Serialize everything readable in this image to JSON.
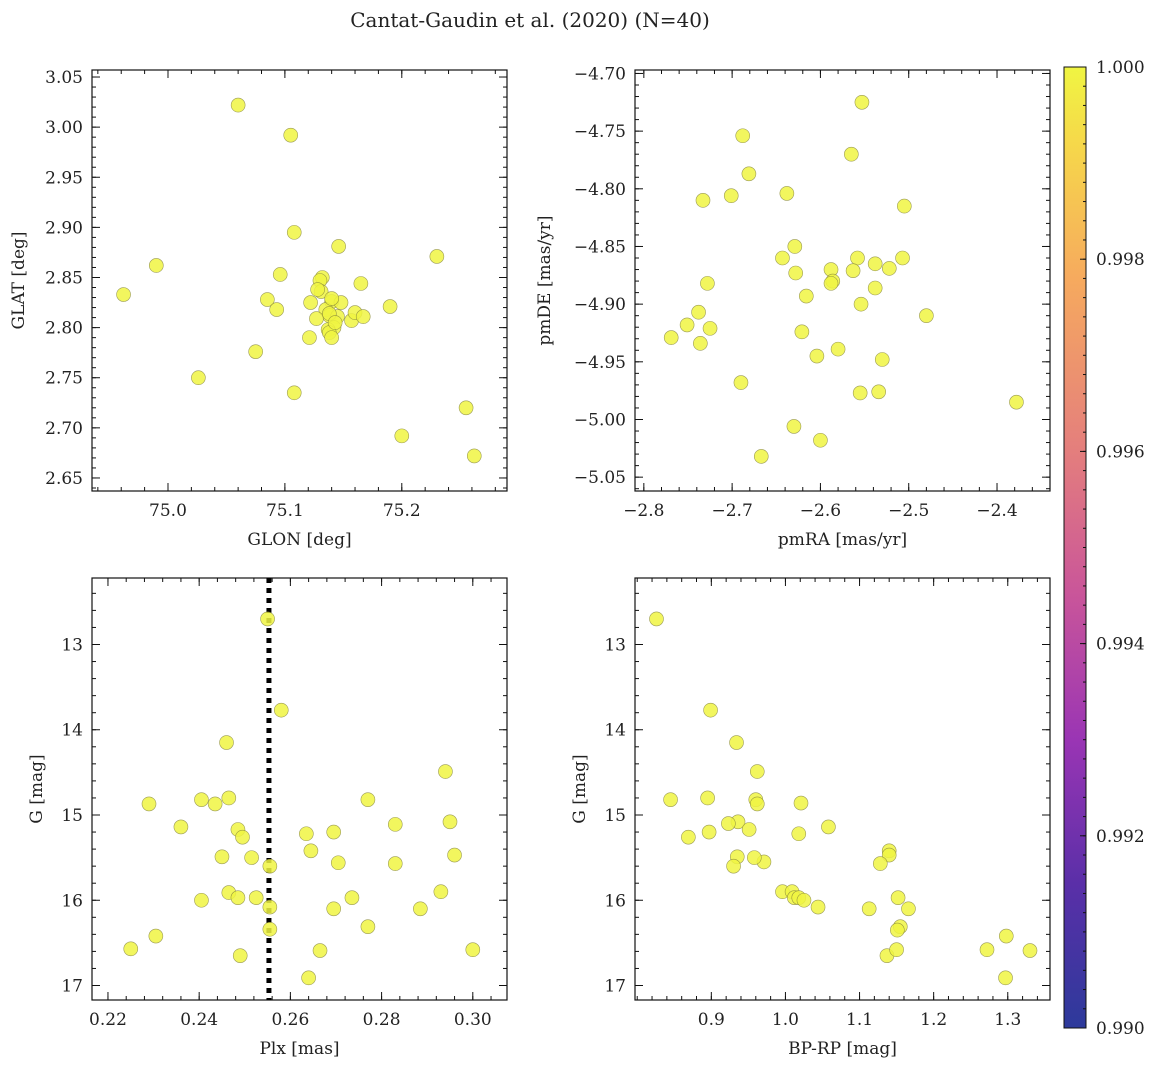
{
  "figure": {
    "title": "Cantat-Gaudin et al. (2020) (N=40)"
  },
  "colorbar": {
    "min": 0.99,
    "max": 1.0,
    "ticks": [
      "0.990",
      "0.992",
      "0.994",
      "0.996",
      "0.998",
      "1.000"
    ],
    "tick_values": [
      0.99,
      0.992,
      0.994,
      0.996,
      0.998,
      1.0
    ],
    "colormap": "plasma"
  },
  "colors": {
    "point": "#f0f542",
    "edge": "#8a8a3a",
    "vline": "#000000"
  },
  "chart_data": [
    {
      "id": "glon-glat",
      "type": "scatter",
      "xlabel": "GLON [deg]",
      "ylabel": "GLAT [deg]",
      "xlim": [
        74.935,
        75.29
      ],
      "ylim": [
        2.637,
        3.057
      ],
      "xticks": [
        75.0,
        75.1,
        75.2
      ],
      "xtick_labels": [
        "75.0",
        "75.1",
        "75.2"
      ],
      "yticks": [
        2.65,
        2.7,
        2.75,
        2.8,
        2.85,
        2.9,
        2.95,
        3.0,
        3.05
      ],
      "ytick_labels": [
        "2.65",
        "2.70",
        "2.75",
        "2.80",
        "2.85",
        "2.90",
        "2.95",
        "3.00",
        "3.05"
      ],
      "x": [
        75.06,
        75.105,
        74.962,
        74.99,
        75.108,
        75.096,
        75.085,
        75.093,
        75.075,
        75.026,
        75.108,
        75.132,
        75.13,
        75.131,
        75.146,
        75.122,
        75.14,
        75.135,
        75.138,
        75.148,
        75.145,
        75.142,
        75.137,
        75.127,
        75.128,
        75.14,
        75.138,
        75.121,
        75.14,
        75.157,
        75.16,
        75.167,
        75.165,
        75.19,
        75.23,
        75.2,
        75.255,
        75.262,
        75.138,
        75.143
      ],
      "y": [
        3.022,
        2.992,
        2.833,
        2.862,
        2.895,
        2.853,
        2.828,
        2.818,
        2.776,
        2.75,
        2.735,
        2.85,
        2.847,
        2.836,
        2.881,
        2.825,
        2.826,
        2.818,
        2.812,
        2.825,
        2.811,
        2.8,
        2.798,
        2.809,
        2.838,
        2.829,
        2.795,
        2.79,
        2.79,
        2.807,
        2.815,
        2.811,
        2.844,
        2.821,
        2.871,
        2.692,
        2.72,
        2.672,
        2.814,
        2.805
      ]
    },
    {
      "id": "pmra-pmde",
      "type": "scatter",
      "xlabel": "pmRA [mas/yr]",
      "ylabel": "pmDE [mas/yr]",
      "xlim": [
        -2.81,
        -2.34
      ],
      "ylim": [
        -5.062,
        -4.697
      ],
      "xticks": [
        -2.8,
        -2.7,
        -2.6,
        -2.5,
        -2.4
      ],
      "xtick_labels": [
        "−2.8",
        "−2.7",
        "−2.6",
        "−2.5",
        "−2.4"
      ],
      "yticks": [
        -5.05,
        -5.0,
        -4.95,
        -4.9,
        -4.85,
        -4.8,
        -4.75,
        -4.7
      ],
      "ytick_labels": [
        "−5.05",
        "−5.00",
        "−4.95",
        "−4.90",
        "−4.85",
        "−4.80",
        "−4.75",
        "−4.70"
      ],
      "x": [
        -2.553,
        -2.688,
        -2.681,
        -2.733,
        -2.701,
        -2.565,
        -2.638,
        -2.505,
        -2.643,
        -2.629,
        -2.628,
        -2.588,
        -2.558,
        -2.563,
        -2.538,
        -2.522,
        -2.507,
        -2.586,
        -2.588,
        -2.616,
        -2.538,
        -2.554,
        -2.728,
        -2.738,
        -2.769,
        -2.751,
        -2.736,
        -2.725,
        -2.621,
        -2.58,
        -2.604,
        -2.53,
        -2.69,
        -2.534,
        -2.555,
        -2.378,
        -2.48,
        -2.63,
        -2.6,
        -2.667
      ],
      "y": [
        -4.725,
        -4.754,
        -4.787,
        -4.81,
        -4.806,
        -4.77,
        -4.804,
        -4.815,
        -4.86,
        -4.85,
        -4.873,
        -4.87,
        -4.86,
        -4.871,
        -4.865,
        -4.869,
        -4.86,
        -4.88,
        -4.882,
        -4.893,
        -4.886,
        -4.9,
        -4.882,
        -4.907,
        -4.929,
        -4.918,
        -4.934,
        -4.921,
        -4.924,
        -4.939,
        -4.945,
        -4.948,
        -4.968,
        -4.976,
        -4.977,
        -4.985,
        -4.91,
        -5.006,
        -5.018,
        -5.032
      ]
    },
    {
      "id": "plx-g",
      "type": "scatter",
      "xlabel": "Plx [mas]",
      "ylabel": "G [mag]",
      "xlim": [
        0.2165,
        0.3075
      ],
      "ylim": [
        17.17,
        12.22
      ],
      "xticks": [
        0.22,
        0.24,
        0.26,
        0.28,
        0.3
      ],
      "xtick_labels": [
        "0.22",
        "0.24",
        "0.26",
        "0.28",
        "0.30"
      ],
      "yticks": [
        13,
        14,
        15,
        16,
        17
      ],
      "ytick_labels": [
        "13",
        "14",
        "15",
        "16",
        "17"
      ],
      "vline": 0.2553,
      "x": [
        0.255,
        0.258,
        0.246,
        0.294,
        0.229,
        0.2405,
        0.2435,
        0.2465,
        0.277,
        0.236,
        0.295,
        0.2485,
        0.283,
        0.2635,
        0.2495,
        0.2695,
        0.2645,
        0.245,
        0.2515,
        0.296,
        0.2555,
        0.2705,
        0.283,
        0.2555,
        0.2465,
        0.293,
        0.2485,
        0.2525,
        0.2405,
        0.2735,
        0.2695,
        0.2885,
        0.277,
        0.2555,
        0.225,
        0.2305,
        0.2665,
        0.249,
        0.264,
        0.3
      ],
      "y": [
        12.7,
        13.77,
        14.15,
        14.49,
        14.87,
        14.82,
        14.87,
        14.8,
        14.82,
        15.14,
        15.08,
        15.17,
        15.11,
        15.22,
        15.26,
        15.2,
        15.42,
        15.49,
        15.5,
        15.47,
        15.6,
        15.56,
        15.57,
        16.08,
        15.91,
        15.9,
        15.97,
        15.97,
        16.0,
        15.97,
        16.1,
        16.1,
        16.31,
        16.34,
        16.57,
        16.42,
        16.59,
        16.65,
        16.91,
        16.58
      ]
    },
    {
      "id": "bprp-g",
      "type": "scatter",
      "xlabel": "BP-RP [mag]",
      "ylabel": "G [mag]",
      "xlim": [
        0.797,
        1.357
      ],
      "ylim": [
        17.17,
        12.22
      ],
      "xticks": [
        0.9,
        1.0,
        1.1,
        1.2,
        1.3
      ],
      "xtick_labels": [
        "0.9",
        "1.0",
        "1.1",
        "1.2",
        "1.3"
      ],
      "yticks": [
        13,
        14,
        15,
        16,
        17
      ],
      "ytick_labels": [
        "13",
        "14",
        "15",
        "16",
        "17"
      ],
      "x": [
        0.826,
        0.899,
        0.934,
        0.962,
        0.845,
        0.895,
        0.96,
        0.962,
        0.936,
        0.923,
        0.869,
        0.897,
        0.951,
        1.021,
        1.018,
        1.058,
        1.14,
        1.14,
        1.128,
        0.935,
        0.971,
        0.958,
        0.93,
        0.996,
        1.009,
        1.012,
        1.018,
        1.025,
        1.044,
        1.152,
        1.166,
        1.113,
        1.155,
        1.151,
        1.137,
        1.15,
        1.272,
        1.298,
        1.33,
        1.297
      ],
      "y": [
        12.7,
        13.77,
        14.15,
        14.49,
        14.82,
        14.8,
        14.82,
        14.87,
        15.08,
        15.1,
        15.26,
        15.2,
        15.17,
        14.86,
        15.22,
        15.14,
        15.42,
        15.47,
        15.57,
        15.49,
        15.55,
        15.5,
        15.6,
        15.9,
        15.9,
        15.97,
        15.97,
        16.0,
        16.08,
        15.97,
        16.1,
        16.1,
        16.31,
        16.35,
        16.65,
        16.58,
        16.58,
        16.42,
        16.59,
        16.91
      ]
    }
  ]
}
